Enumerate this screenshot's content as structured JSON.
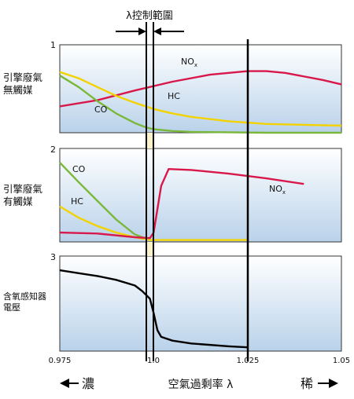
{
  "figure": {
    "control_range_label": "λ控制範圍",
    "rich_label": "濃",
    "lean_label": "稀",
    "x_axis_label": "空氣過剩率 λ"
  },
  "chart_data": [
    {
      "type": "line",
      "panel_number": "1",
      "panel_label": [
        "引擎廢氣",
        "無觸媒"
      ],
      "xlim": [
        0.975,
        1.05
      ],
      "x_ticks": [
        "0.975",
        "1.0",
        "1.025",
        "1.05"
      ],
      "series": [
        {
          "name": "NOx",
          "color": "#d8184a",
          "x": [
            0.975,
            0.985,
            0.995,
            1.005,
            1.015,
            1.025,
            1.03,
            1.035,
            1.045,
            1.05
          ],
          "y": [
            0.3,
            0.37,
            0.48,
            0.58,
            0.66,
            0.7,
            0.7,
            0.68,
            0.6,
            0.55
          ]
        },
        {
          "name": "HC",
          "color": "#f2d200",
          "x": [
            0.975,
            0.98,
            0.985,
            0.99,
            0.995,
            1.0,
            1.005,
            1.01,
            1.02,
            1.03,
            1.04,
            1.05
          ],
          "y": [
            0.69,
            0.62,
            0.52,
            0.42,
            0.34,
            0.27,
            0.22,
            0.18,
            0.13,
            0.1,
            0.09,
            0.08
          ]
        },
        {
          "name": "CO",
          "color": "#7ab83a",
          "x": [
            0.975,
            0.98,
            0.985,
            0.99,
            0.995,
            0.998,
            1.0,
            1.005,
            1.01,
            1.02,
            1.03,
            1.05
          ],
          "y": [
            0.65,
            0.52,
            0.36,
            0.22,
            0.11,
            0.06,
            0.04,
            0.02,
            0.01,
            0.005,
            0.0,
            0.0
          ]
        }
      ]
    },
    {
      "type": "line",
      "panel_number": "2",
      "panel_label": [
        "引擎廢氣",
        "有觸媒"
      ],
      "xlim": [
        0.975,
        1.05
      ],
      "series": [
        {
          "name": "CO",
          "color": "#7ab83a",
          "x": [
            0.975,
            0.98,
            0.985,
            0.99,
            0.995,
            0.999
          ],
          "y": [
            0.85,
            0.64,
            0.44,
            0.24,
            0.08,
            0.02
          ]
        },
        {
          "name": "HC",
          "color": "#f2d200",
          "x": [
            0.975,
            0.98,
            0.985,
            0.99,
            0.995,
            0.999,
            1.005,
            1.015,
            1.025
          ],
          "y": [
            0.38,
            0.26,
            0.17,
            0.1,
            0.05,
            0.02,
            0.02,
            0.02,
            0.02
          ]
        },
        {
          "name": "NOx",
          "color": "#d8184a",
          "x": [
            0.975,
            0.985,
            0.995,
            0.999,
            1.0,
            1.002,
            1.004,
            1.01,
            1.02,
            1.03,
            1.04
          ],
          "y": [
            0.1,
            0.09,
            0.05,
            0.04,
            0.1,
            0.6,
            0.78,
            0.77,
            0.73,
            0.68,
            0.62
          ]
        }
      ]
    },
    {
      "type": "line",
      "panel_number": "3",
      "panel_label": [
        "含氧感知器",
        "電壓"
      ],
      "xlim": [
        0.975,
        1.05
      ],
      "series": [
        {
          "name": "",
          "color": "#000000",
          "x": [
            0.975,
            0.98,
            0.985,
            0.99,
            0.995,
            0.997,
            0.999,
            1.0,
            1.001,
            1.002,
            1.005,
            1.01,
            1.02,
            1.025
          ],
          "y": [
            0.85,
            0.82,
            0.79,
            0.75,
            0.69,
            0.63,
            0.55,
            0.4,
            0.22,
            0.15,
            0.11,
            0.08,
            0.05,
            0.04
          ]
        }
      ]
    }
  ]
}
